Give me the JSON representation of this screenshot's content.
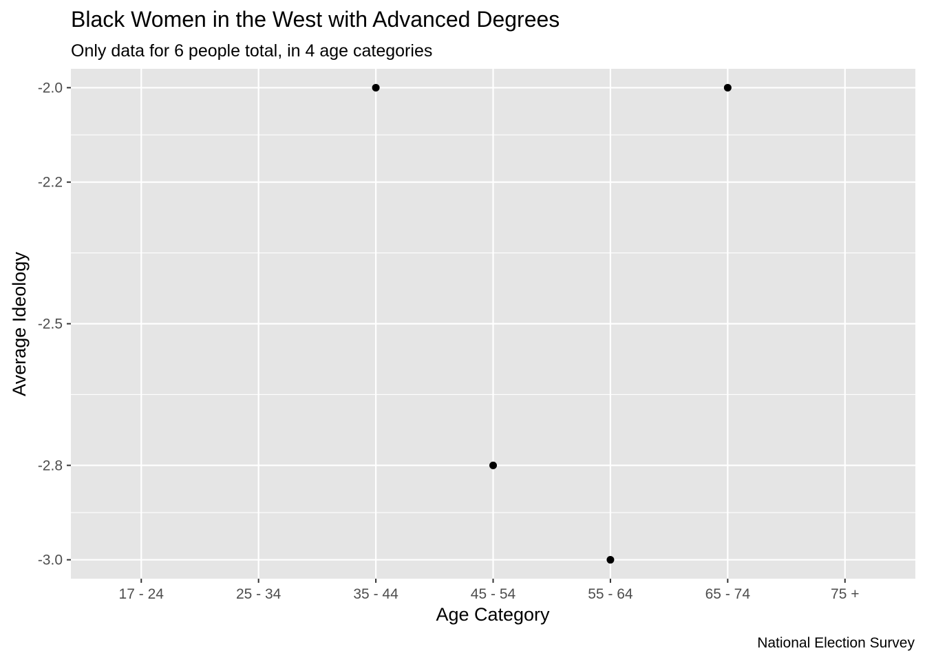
{
  "chart_data": {
    "type": "scatter",
    "title": "Black Women in the West with Advanced Degrees",
    "subtitle": "Only data for 6 people total, in 4 age categories",
    "xlabel": "Age Category",
    "ylabel": "Average Ideology",
    "caption": "National Election Survey",
    "categories": [
      "17 - 24",
      "25 - 34",
      "35 - 44",
      "45 - 54",
      "55 - 64",
      "65 - 74",
      "75 +"
    ],
    "y_ticks": [
      -2.0,
      -2.2,
      -2.5,
      -2.8,
      -3.0
    ],
    "y_tick_labels": [
      "-2.0",
      "-2.2",
      "-2.5",
      "-2.8",
      "-3.0"
    ],
    "ylim": [
      -3.04,
      -1.96
    ],
    "points": [
      {
        "x": "35 - 44",
        "y": -2.0
      },
      {
        "x": "45 - 54",
        "y": -2.8
      },
      {
        "x": "55 - 64",
        "y": -3.0
      },
      {
        "x": "65 - 74",
        "y": -2.0
      }
    ],
    "grid": true,
    "colors": {
      "panel_background": "#e5e5e5",
      "grid_line": "#ffffff",
      "point": "#000000",
      "axis_text": "#4d4d4d",
      "title_text": "#000000"
    }
  }
}
